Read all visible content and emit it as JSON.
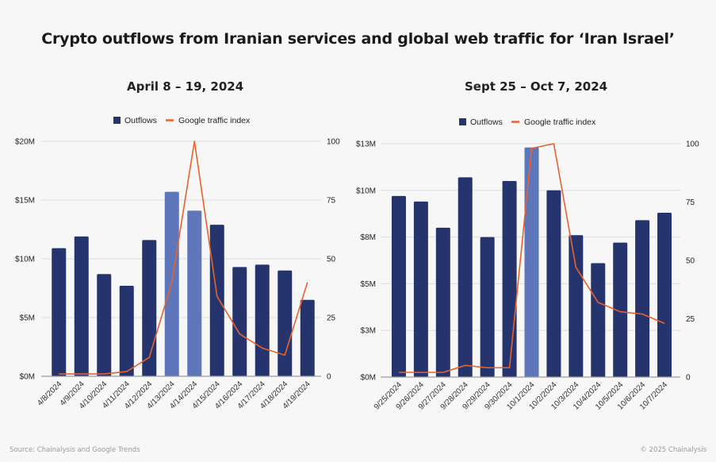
{
  "title": "Crypto outflows from Iranian services and global web traffic for ‘Iran Israel’",
  "footer": {
    "source": "Source: Chainalysis and Google Trends",
    "copyright": "© 2025 Chainalysis"
  },
  "colors": {
    "bar": "#26346e",
    "bar_highlight": "#5e76ba",
    "line": "#e8622c",
    "grid": "#dcdcdc",
    "axis": "#9a9a9a"
  },
  "chart_data": [
    {
      "type": "bar",
      "title": "April 8 – 19, 2024",
      "legend": [
        "Outflows",
        "Google traffic index"
      ],
      "legend_position": "top-center",
      "grid": true,
      "categories": [
        "4/8/2024",
        "4/9/2024",
        "4/10/2024",
        "4/11/2024",
        "4/12/2024",
        "4/13/2024",
        "4/14/2024",
        "4/15/2024",
        "4/16/2024",
        "4/17/2024",
        "4/18/2024",
        "4/19/2024"
      ],
      "series": [
        {
          "name": "Outflows",
          "type": "bar",
          "axis": "left",
          "unit": "USD millions",
          "values": [
            10.9,
            11.9,
            8.7,
            7.7,
            11.6,
            15.7,
            14.1,
            12.9,
            9.3,
            9.5,
            9.0,
            6.5
          ],
          "highlighted": [
            5,
            6
          ]
        },
        {
          "name": "Google traffic index",
          "type": "line",
          "axis": "right",
          "values": [
            1,
            1,
            1,
            2,
            8,
            40,
            100,
            34,
            18,
            12,
            9,
            40
          ]
        }
      ],
      "ylim_left": [
        0,
        20
      ],
      "yticks_left": [
        "$0M",
        "$5M",
        "$10M",
        "$15M",
        "$20M"
      ],
      "yticks_left_values": [
        0,
        5,
        10,
        15,
        20
      ],
      "ylim_right": [
        0,
        100
      ],
      "yticks_right": [
        "0",
        "25",
        "50",
        "75",
        "100"
      ],
      "yticks_right_values": [
        0,
        25,
        50,
        75,
        100
      ]
    },
    {
      "type": "bar",
      "title": "Sept 25 – Oct 7, 2024",
      "legend": [
        "Outflows",
        "Google traffic index"
      ],
      "legend_position": "top-center",
      "grid": true,
      "categories": [
        "9/25/2024",
        "9/26/2024",
        "9/27/2024",
        "9/28/2024",
        "9/29/2024",
        "9/30/2024",
        "10/1/2024",
        "10/2/2024",
        "10/3/2024",
        "10/4/2024",
        "10/5/2024",
        "10/6/2024",
        "10/7/2024"
      ],
      "series": [
        {
          "name": "Outflows",
          "type": "bar",
          "axis": "left",
          "unit": "USD millions",
          "values": [
            9.7,
            9.4,
            8.0,
            10.7,
            7.5,
            10.5,
            12.3,
            10.0,
            7.6,
            6.1,
            7.2,
            8.4,
            8.8
          ],
          "highlighted": [
            6
          ]
        },
        {
          "name": "Google traffic index",
          "type": "line",
          "axis": "right",
          "values": [
            2,
            2,
            2,
            5,
            4,
            4,
            98,
            100,
            47,
            32,
            28,
            27,
            23
          ]
        }
      ],
      "ylim_left": [
        0,
        12.5
      ],
      "yticks_left": [
        "$0M",
        "$3M",
        "$5M",
        "$8M",
        "$10M",
        "$13M"
      ],
      "yticks_left_values": [
        0,
        2.5,
        5,
        7.5,
        10,
        12.5
      ],
      "ylim_right": [
        0,
        100
      ],
      "yticks_right": [
        "0",
        "25",
        "50",
        "75",
        "100"
      ],
      "yticks_right_values": [
        0,
        25,
        50,
        75,
        100
      ]
    }
  ]
}
